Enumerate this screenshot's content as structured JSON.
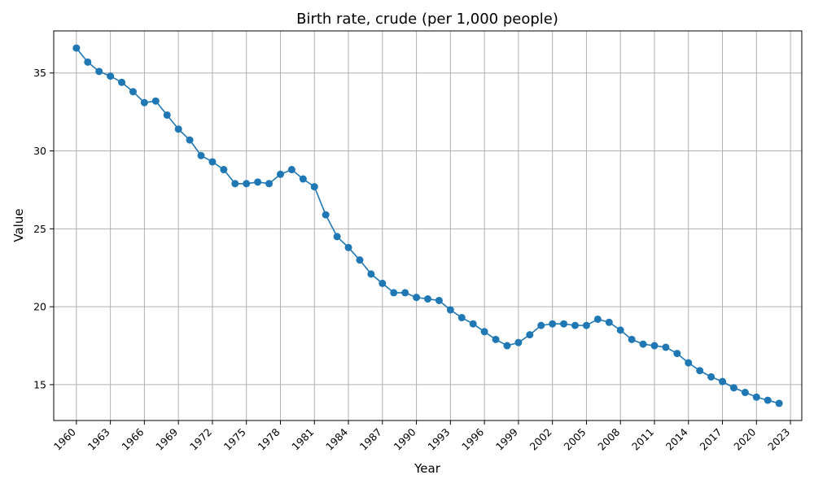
{
  "chart_data": {
    "type": "line",
    "title": "Birth rate, crude (per 1,000 people)",
    "xlabel": "Year",
    "ylabel": "Value",
    "xlim": [
      1958,
      2024
    ],
    "ylim": [
      12.7,
      37.7
    ],
    "xticks": [
      1960,
      1963,
      1966,
      1969,
      1972,
      1975,
      1978,
      1981,
      1984,
      1987,
      1990,
      1993,
      1996,
      1999,
      2002,
      2005,
      2008,
      2011,
      2014,
      2017,
      2020,
      2023
    ],
    "yticks": [
      15,
      20,
      25,
      30,
      35
    ],
    "grid": true,
    "color": "#1f77b4",
    "x": [
      1960,
      1961,
      1962,
      1963,
      1964,
      1965,
      1966,
      1967,
      1968,
      1969,
      1970,
      1971,
      1972,
      1973,
      1974,
      1975,
      1976,
      1977,
      1978,
      1979,
      1980,
      1981,
      1982,
      1983,
      1984,
      1985,
      1986,
      1987,
      1988,
      1989,
      1990,
      1991,
      1992,
      1993,
      1994,
      1995,
      1996,
      1997,
      1998,
      1999,
      2000,
      2001,
      2002,
      2003,
      2004,
      2005,
      2006,
      2007,
      2008,
      2009,
      2010,
      2011,
      2012,
      2013,
      2014,
      2015,
      2016,
      2017,
      2018,
      2019,
      2020,
      2021,
      2022
    ],
    "values": [
      36.6,
      35.7,
      35.1,
      34.8,
      34.4,
      33.8,
      33.1,
      33.2,
      32.3,
      31.4,
      30.7,
      29.7,
      29.3,
      28.8,
      27.9,
      27.9,
      28.0,
      27.9,
      28.5,
      28.8,
      28.2,
      27.7,
      25.9,
      24.5,
      23.8,
      23.0,
      22.1,
      21.5,
      20.9,
      20.9,
      20.6,
      20.5,
      20.4,
      19.8,
      19.3,
      18.9,
      18.4,
      17.9,
      17.5,
      17.7,
      18.2,
      18.8,
      18.9,
      18.9,
      18.8,
      18.8,
      19.2,
      19.0,
      18.5,
      17.9,
      17.6,
      17.5,
      17.4,
      17.0,
      16.4,
      15.9,
      15.5,
      15.2,
      14.8,
      14.5,
      14.2,
      14.0,
      13.8
    ]
  }
}
